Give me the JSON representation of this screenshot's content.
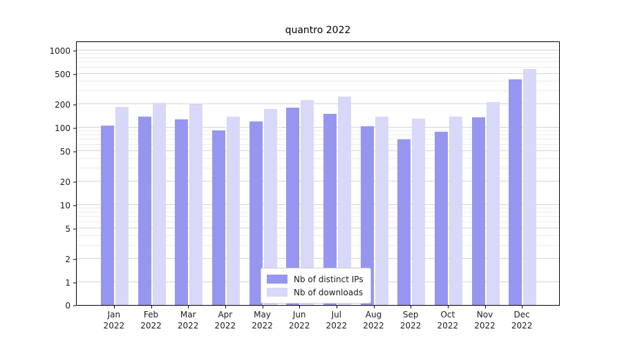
{
  "chart_data": {
    "type": "bar",
    "title": "quantro 2022",
    "year_label": "2022",
    "categories": [
      "Jan",
      "Feb",
      "Mar",
      "Apr",
      "May",
      "Jun",
      "Jul",
      "Aug",
      "Sep",
      "Oct",
      "Nov",
      "Dec"
    ],
    "series": [
      {
        "name": "Nb of distinct IPs",
        "color": "#9696f0",
        "values": [
          107,
          140,
          127,
          93,
          120,
          183,
          150,
          105,
          70,
          88,
          135,
          420
        ]
      },
      {
        "name": "Nb of downloads",
        "color": "#d8d8f8",
        "values": [
          185,
          210,
          200,
          140,
          175,
          230,
          250,
          140,
          130,
          140,
          215,
          580
        ]
      }
    ],
    "y_ticks": [
      0,
      1,
      2,
      5,
      10,
      20,
      50,
      100,
      200,
      500,
      1000
    ],
    "ylim": [
      0,
      1000
    ],
    "y_scale": "symlog",
    "grid": true,
    "legend_position": "lower center"
  }
}
